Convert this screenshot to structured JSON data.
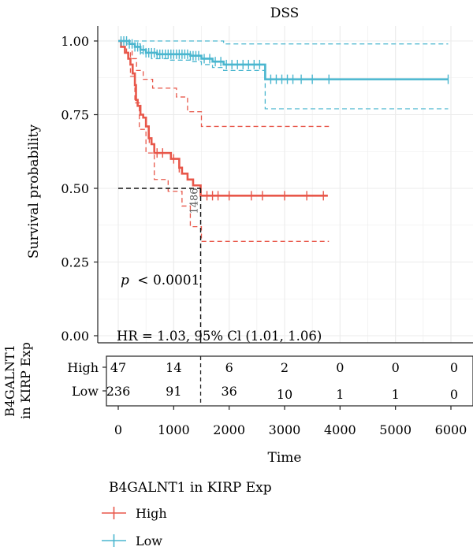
{
  "chart_data": {
    "type": "line",
    "title": "DSS",
    "xlabel": "Time",
    "ylabel": "Survival probability",
    "xlim": [
      0,
      6000
    ],
    "ylim": [
      0,
      1
    ],
    "x_ticks": [
      "0",
      "1000",
      "2000",
      "3000",
      "4000",
      "5000",
      "6000"
    ],
    "y_ticks": [
      "0.00",
      "0.25",
      "0.50",
      "0.75",
      "1.00"
    ],
    "grid": true,
    "legend_title": "B4GALNT1 in KIRP Exp",
    "legend_position": "bottom",
    "annotations": {
      "pvalue_label": "p",
      "pvalue_text": "< 0.0001",
      "hr_text": "HR = 1.03, 95% Cl (1.01, 1.06)",
      "median_label": "1486",
      "median_x": 1486,
      "median_y": 0.5
    },
    "risk_table": {
      "ylabel_line1": "B4GALNT1",
      "ylabel_line2": "in KIRP Exp",
      "times": [
        0,
        1000,
        2000,
        3000,
        4000,
        5000,
        6000
      ],
      "rows": [
        {
          "label": "High",
          "counts": [
            "47",
            "14",
            "6",
            "2",
            "0",
            "0",
            "0"
          ]
        },
        {
          "label": "Low",
          "counts": [
            "236",
            "91",
            "36",
            "10",
            "1",
            "1",
            "0"
          ]
        }
      ]
    },
    "series": [
      {
        "name": "High",
        "color": "#e8574a",
        "curve": [
          [
            0,
            1.0
          ],
          [
            50,
            0.98
          ],
          [
            120,
            0.96
          ],
          [
            180,
            0.94
          ],
          [
            220,
            0.92
          ],
          [
            260,
            0.89
          ],
          [
            300,
            0.85
          ],
          [
            320,
            0.8
          ],
          [
            350,
            0.78
          ],
          [
            400,
            0.75
          ],
          [
            450,
            0.74
          ],
          [
            500,
            0.71
          ],
          [
            550,
            0.67
          ],
          [
            600,
            0.65
          ],
          [
            650,
            0.62
          ],
          [
            900,
            0.62
          ],
          [
            950,
            0.6
          ],
          [
            1100,
            0.57
          ],
          [
            1150,
            0.55
          ],
          [
            1250,
            0.53
          ],
          [
            1350,
            0.51
          ],
          [
            1486,
            0.475
          ],
          [
            3780,
            0.475
          ]
        ],
        "censor_x": [
          560,
          700,
          800,
          1000,
          1100,
          1600,
          1700,
          1800,
          2000,
          2400,
          2600,
          3000,
          3400,
          3700
        ],
        "upper": [
          [
            0,
            1.0
          ],
          [
            200,
            1.0
          ],
          [
            250,
            0.94
          ],
          [
            330,
            0.9
          ],
          [
            450,
            0.87
          ],
          [
            620,
            0.84
          ],
          [
            900,
            0.84
          ],
          [
            1050,
            0.81
          ],
          [
            1250,
            0.76
          ],
          [
            1500,
            0.71
          ],
          [
            3800,
            0.71
          ]
        ],
        "lower": [
          [
            0,
            1.0
          ],
          [
            150,
            0.96
          ],
          [
            220,
            0.88
          ],
          [
            300,
            0.79
          ],
          [
            380,
            0.7
          ],
          [
            500,
            0.62
          ],
          [
            650,
            0.53
          ],
          [
            900,
            0.49
          ],
          [
            1150,
            0.44
          ],
          [
            1300,
            0.37
          ],
          [
            1500,
            0.32
          ],
          [
            3800,
            0.32
          ]
        ]
      },
      {
        "name": "Low",
        "color": "#4ab6cf",
        "curve": [
          [
            0,
            1.0
          ],
          [
            150,
            1.0
          ],
          [
            200,
            0.99
          ],
          [
            300,
            0.98
          ],
          [
            400,
            0.97
          ],
          [
            500,
            0.96
          ],
          [
            700,
            0.955
          ],
          [
            1000,
            0.955
          ],
          [
            1300,
            0.95
          ],
          [
            1500,
            0.94
          ],
          [
            1700,
            0.93
          ],
          [
            1900,
            0.92
          ],
          [
            2650,
            0.92
          ],
          [
            2650,
            0.87
          ],
          [
            5950,
            0.87
          ]
        ],
        "censor_x": [
          50,
          100,
          150,
          200,
          250,
          300,
          350,
          400,
          450,
          500,
          550,
          600,
          650,
          700,
          750,
          800,
          850,
          900,
          950,
          1000,
          1050,
          1100,
          1150,
          1200,
          1250,
          1300,
          1350,
          1400,
          1450,
          1550,
          1650,
          1750,
          1850,
          1950,
          2050,
          2150,
          2250,
          2350,
          2450,
          2550,
          2750,
          2850,
          2950,
          3050,
          3150,
          3300,
          3500,
          3800,
          5950
        ],
        "upper": [
          [
            0,
            1.0
          ],
          [
            1900,
            1.0
          ],
          [
            1900,
            0.99
          ],
          [
            5950,
            0.99
          ]
        ],
        "lower": [
          [
            0,
            1.0
          ],
          [
            150,
            0.99
          ],
          [
            400,
            0.96
          ],
          [
            600,
            0.94
          ],
          [
            900,
            0.935
          ],
          [
            1300,
            0.93
          ],
          [
            1500,
            0.92
          ],
          [
            1700,
            0.91
          ],
          [
            1900,
            0.9
          ],
          [
            2650,
            0.9
          ],
          [
            2650,
            0.77
          ],
          [
            5950,
            0.77
          ]
        ]
      }
    ]
  }
}
